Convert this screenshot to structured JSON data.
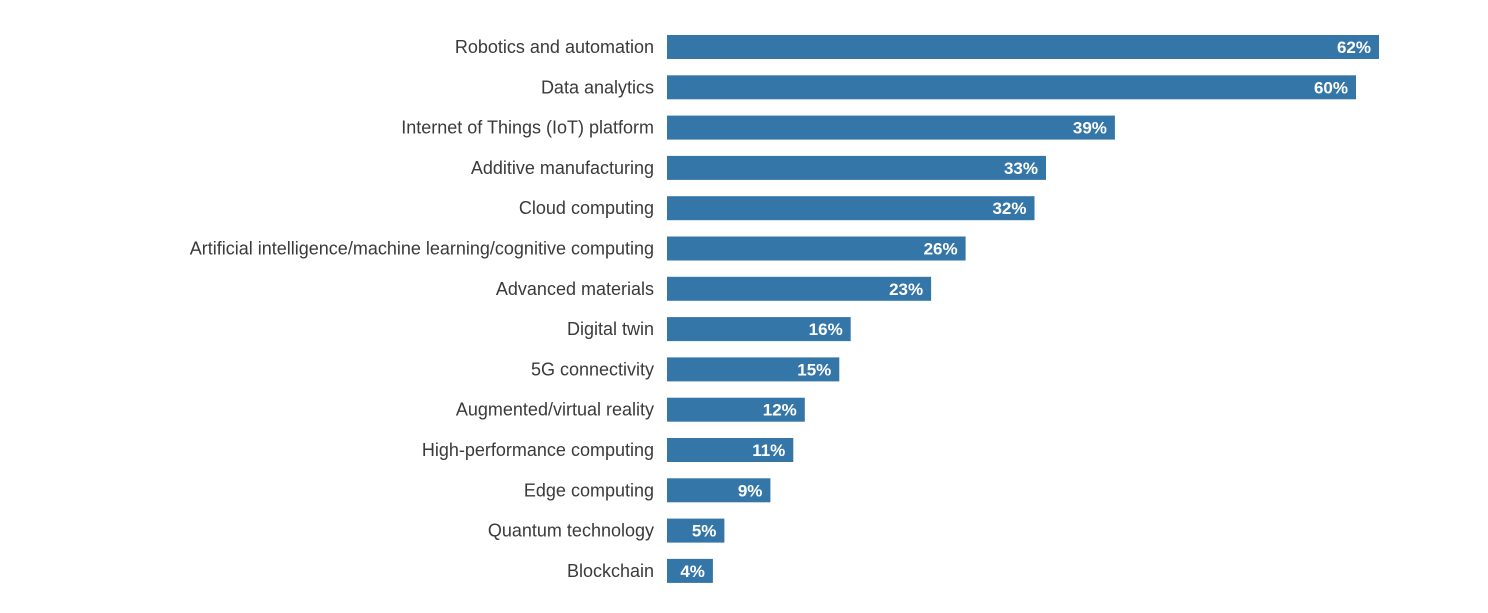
{
  "chart_data": {
    "type": "bar",
    "orientation": "horizontal",
    "title": "",
    "xlabel": "",
    "ylabel": "",
    "categories": [
      "Robotics and automation",
      "Data analytics",
      "Internet of Things (IoT) platform",
      "Additive manufacturing",
      "Cloud computing",
      "Artificial intelligence/machine learning/cognitive computing",
      "Advanced materials",
      "Digital twin",
      "5G connectivity",
      "Augmented/virtual reality",
      "High-performance computing",
      "Edge computing",
      "Quantum technology",
      "Blockchain"
    ],
    "values": [
      62,
      60,
      39,
      33,
      32,
      26,
      23,
      16,
      15,
      12,
      11,
      9,
      5,
      4
    ],
    "value_labels": [
      "62%",
      "60%",
      "39%",
      "33%",
      "32%",
      "26%",
      "23%",
      "16%",
      "15%",
      "12%",
      "11%",
      "9%",
      "5%",
      "4%"
    ],
    "unit": "%",
    "xlim": [
      0,
      62
    ],
    "grid": false,
    "legend": "none",
    "colors": {
      "bar": "#3576a8",
      "value_label": "#ffffff",
      "category_label": "#3a3a3a"
    }
  }
}
